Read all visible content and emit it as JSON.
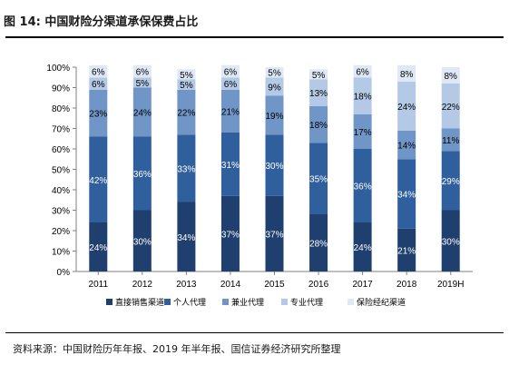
{
  "header": {
    "figure_label": "图 14:",
    "title": "中国财险分渠道承保保费占比"
  },
  "footer": {
    "source": "资料来源：中国财险历年年报、2019 年半年报、国信证券经济研究所整理"
  },
  "chart_data": {
    "type": "bar",
    "stacked": true,
    "normalized": true,
    "categories": [
      "2011",
      "2012",
      "2013",
      "2014",
      "2015",
      "2016",
      "2017",
      "2018",
      "2019H"
    ],
    "series": [
      {
        "name": "直接销售渠道",
        "color": "#1f3f6e",
        "values": [
          24,
          30,
          34,
          37,
          37,
          28,
          24,
          21,
          30
        ]
      },
      {
        "name": "个人代理",
        "color": "#2f5f9c",
        "values": [
          42,
          36,
          33,
          31,
          30,
          35,
          36,
          34,
          29
        ]
      },
      {
        "name": "兼业代理",
        "color": "#7096c8",
        "values": [
          23,
          24,
          22,
          21,
          19,
          18,
          17,
          14,
          11
        ]
      },
      {
        "name": "专业代理",
        "color": "#b3c9e6",
        "values": [
          6,
          5,
          5,
          6,
          9,
          13,
          18,
          24,
          22
        ]
      },
      {
        "name": "保险经纪渠道",
        "color": "#dfe8f5",
        "values": [
          6,
          6,
          5,
          6,
          5,
          5,
          6,
          8,
          8
        ]
      }
    ],
    "y_tick_labels": [
      "0%",
      "10%",
      "20%",
      "30%",
      "40%",
      "50%",
      "60%",
      "70%",
      "80%",
      "90%",
      "100%"
    ],
    "ylim": [
      0,
      100
    ],
    "legend_position": "bottom",
    "grid": false
  }
}
